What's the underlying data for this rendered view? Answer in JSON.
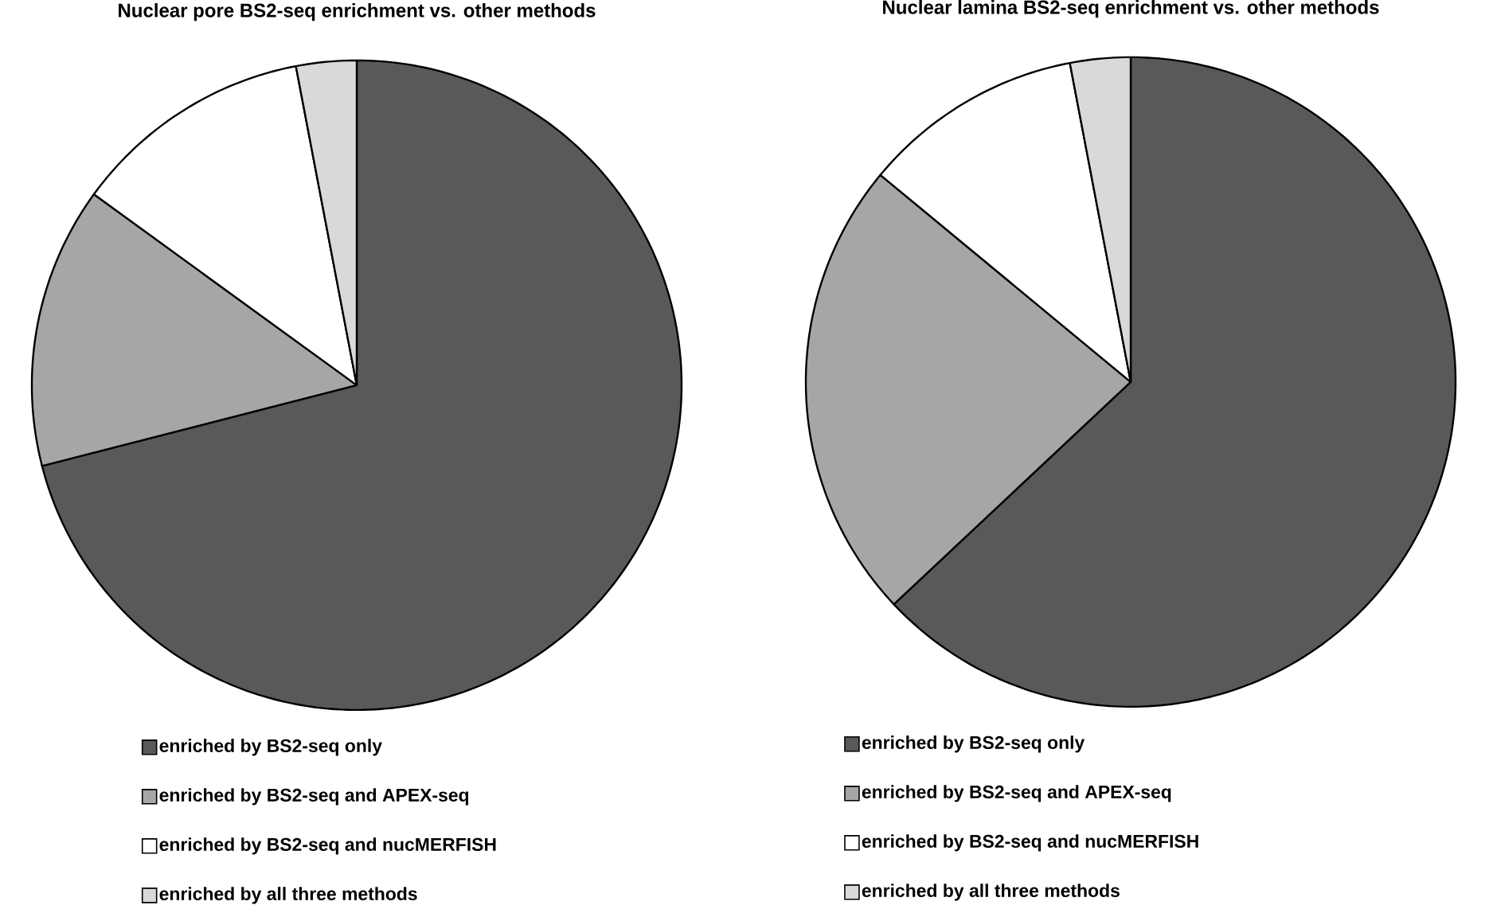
{
  "chart_data": [
    {
      "type": "pie",
      "title": "Nuclear pore BS2-seq enrichment vs. other methods",
      "categories": [
        "enriched by BS2-seq only",
        "enriched by BS2-seq and APEX-seq",
        "enriched by BS2-seq and nucMERFISH",
        "enriched by all three methods"
      ],
      "values": [
        71,
        14,
        12,
        3
      ],
      "colors": [
        "#595959",
        "#a6a6a6",
        "#ffffff",
        "#d9d9d9"
      ],
      "legend": "bottom"
    },
    {
      "type": "pie",
      "title": "Nuclear lamina BS2-seq enrichment vs. other methods",
      "categories": [
        "enriched by BS2-seq only",
        "enriched by BS2-seq and APEX-seq",
        "enriched by BS2-seq and nucMERFISH",
        "enriched by all three methods"
      ],
      "values": [
        63,
        23,
        11,
        3
      ],
      "colors": [
        "#595959",
        "#a6a6a6",
        "#ffffff",
        "#d9d9d9"
      ],
      "legend": "bottom"
    }
  ]
}
